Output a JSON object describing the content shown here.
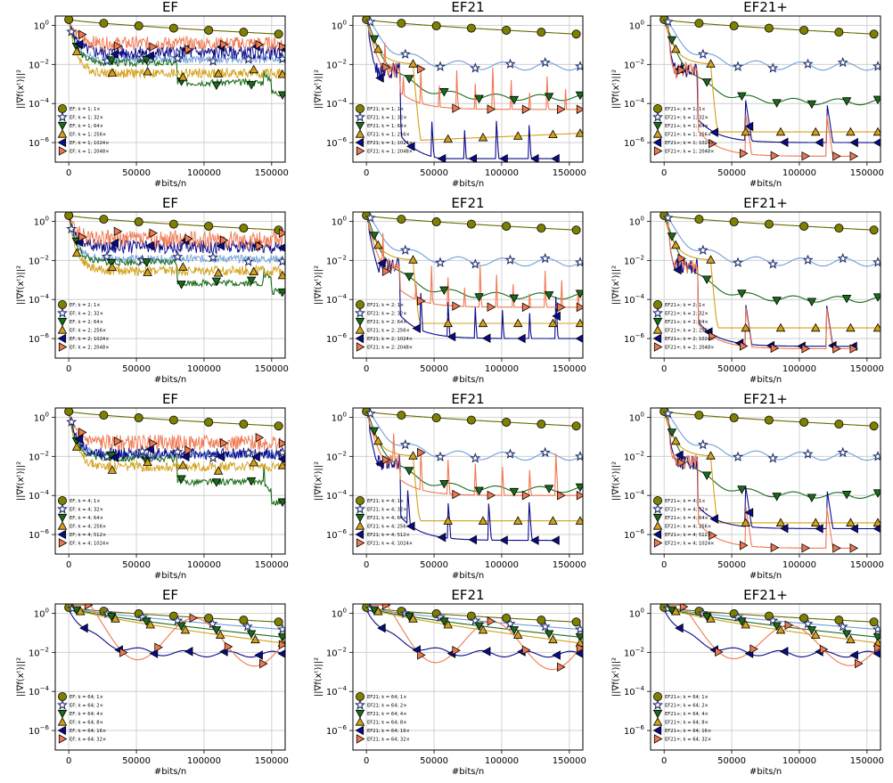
{
  "x_axis": {
    "label": "#bits/n",
    "ticks": [
      0,
      50000,
      100000,
      150000
    ],
    "range": [
      -10000,
      160000
    ]
  },
  "y_axis": {
    "label": "||∇f(xᵗ)||²",
    "scale": "log",
    "range": [
      1e-07,
      3
    ],
    "ticks": [
      {
        "value": 1,
        "base": "10",
        "exp": "0"
      },
      {
        "value": 0.01,
        "base": "10",
        "exp": "−2"
      },
      {
        "value": 0.0001,
        "base": "10",
        "exp": "−4"
      },
      {
        "value": 1e-06,
        "base": "10",
        "exp": "−6"
      }
    ]
  },
  "series_style": [
    {
      "color": "#6b6b00",
      "marker": "circle",
      "marker_fill": "#808000"
    },
    {
      "color": "#6f9fd8",
      "marker": "star",
      "marker_fill": "#1f2d6b"
    },
    {
      "color": "#1a6b1a",
      "marker": "triangle-down",
      "marker_fill": "#1a6b1a"
    },
    {
      "color": "#d4a017",
      "marker": "triangle-up",
      "marker_fill": "#d4a017"
    },
    {
      "color": "#0a0a8c",
      "marker": "triangle-left",
      "marker_fill": "#0a0a8c"
    },
    {
      "color": "#f07850",
      "marker": "triangle-right",
      "marker_fill": "#f07850"
    }
  ],
  "rows": [
    {
      "k": "1",
      "factors": [
        "1×",
        "32×",
        "64×",
        "256×",
        "1024×",
        "2048×"
      ]
    },
    {
      "k": "2",
      "factors": [
        "1×",
        "32×",
        "64×",
        "256×",
        "1024×",
        "2048×"
      ]
    },
    {
      "k": "4",
      "factors": [
        "1×",
        "32×",
        "64×",
        "256×",
        "512×",
        "1024×"
      ]
    },
    {
      "k": "64",
      "factors": [
        "1×",
        "2×",
        "4×",
        "8×",
        "16×",
        "32×"
      ]
    }
  ],
  "methods": [
    "EF",
    "EF21",
    "EF21+"
  ],
  "chart_data": [
    {
      "type": "line",
      "title": "EF",
      "row": 0,
      "col": 0,
      "k": "1",
      "series": [
        {
          "name": "EF; k = 1; 1×",
          "shape": "slow",
          "start": 2,
          "end": 0.35
        },
        {
          "name": "EF; k = 1; 32×",
          "shape": "noisy",
          "start": 2,
          "level": 0.018,
          "amp": 0.2
        },
        {
          "name": "EF; k = 1; 64×",
          "shape": "steps",
          "start": 2,
          "levels": [
            0.012,
            0.0012,
            0.00035
          ]
        },
        {
          "name": "EF; k = 1; 256×",
          "shape": "noisy",
          "start": 2,
          "level": 0.0035,
          "amp": 0.25
        },
        {
          "name": "EF; k = 1; 1024×",
          "shape": "noisy",
          "start": 2,
          "level": 0.04,
          "amp": 0.35
        },
        {
          "name": "EF; k = 1; 2048×",
          "shape": "noisy",
          "start": 2,
          "level": 0.12,
          "amp": 0.35
        }
      ]
    },
    {
      "type": "line",
      "title": "EF21",
      "row": 0,
      "col": 1,
      "k": "1",
      "series": [
        {
          "name": "EF21; k = 1; 1×",
          "shape": "slow",
          "start": 2,
          "end": 0.35
        },
        {
          "name": "EF21; k = 1; 32×",
          "shape": "wavy",
          "start": 2,
          "level": 0.008,
          "amp": 0.4
        },
        {
          "name": "EF21; k = 1; 64×",
          "shape": "wavy",
          "start": 2,
          "level": 0.0002,
          "amp": 0.3
        },
        {
          "name": "EF21; k = 1; 256×",
          "shape": "drop",
          "start": 2,
          "level": 1e-06,
          "drift": 3
        },
        {
          "name": "EF21; k = 1; 1024×",
          "shape": "spiky",
          "start": 2,
          "level": 1e-07,
          "spikes": 5
        },
        {
          "name": "EF21; k = 1; 2048×",
          "shape": "spiky",
          "start": 2,
          "level": 5e-05,
          "spikes": 9
        }
      ]
    },
    {
      "type": "line",
      "title": "EF21+",
      "row": 0,
      "col": 2,
      "k": "1",
      "series": [
        {
          "name": "EF21+; k = 1; 1×",
          "shape": "slow",
          "start": 2,
          "end": 0.35
        },
        {
          "name": "EF21+; k = 1; 32×",
          "shape": "wavy",
          "start": 2,
          "level": 0.008,
          "amp": 0.4
        },
        {
          "name": "EF21+; k = 1; 64×",
          "shape": "wavy",
          "start": 2,
          "level": 0.00012,
          "amp": 0.3
        },
        {
          "name": "EF21+; k = 1; 256×",
          "shape": "drop",
          "start": 2,
          "level": 3.5e-06,
          "drift": 1
        },
        {
          "name": "EF21+; k = 1; 1024×",
          "shape": "spiky",
          "start": 2,
          "level": 1e-06,
          "spikes": 2
        },
        {
          "name": "EF21+; k = 1; 2048×",
          "shape": "spiky",
          "start": 2,
          "level": 2e-07,
          "spikes": 2
        }
      ]
    },
    {
      "type": "line",
      "title": "EF",
      "row": 1,
      "col": 0,
      "k": "2",
      "series": [
        {
          "name": "EF; k = 2; 1×",
          "shape": "slow",
          "start": 2,
          "end": 0.35
        },
        {
          "name": "EF; k = 2; 32×",
          "shape": "noisy",
          "start": 2,
          "level": 0.012,
          "amp": 0.2
        },
        {
          "name": "EF; k = 2; 64×",
          "shape": "steps",
          "start": 2,
          "levels": [
            0.008,
            0.0007,
            0.00025
          ]
        },
        {
          "name": "EF; k = 2; 256×",
          "shape": "noisy",
          "start": 2,
          "level": 0.003,
          "amp": 0.25
        },
        {
          "name": "EF; k = 2; 1024×",
          "shape": "noisy",
          "start": 2,
          "level": 0.05,
          "amp": 0.35
        },
        {
          "name": "EF; k = 2; 2048×",
          "shape": "noisy",
          "start": 2,
          "level": 0.12,
          "amp": 0.45
        }
      ]
    },
    {
      "type": "line",
      "title": "EF21",
      "row": 1,
      "col": 1,
      "k": "2",
      "series": [
        {
          "name": "EF21; k = 2; 1×",
          "shape": "slow",
          "start": 2,
          "end": 0.35
        },
        {
          "name": "EF21; k = 2; 32×",
          "shape": "wavy",
          "start": 2,
          "level": 0.008,
          "amp": 0.4
        },
        {
          "name": "EF21; k = 2; 64×",
          "shape": "wavy",
          "start": 2,
          "level": 0.00015,
          "amp": 0.3
        },
        {
          "name": "EF21; k = 2; 256×",
          "shape": "drop",
          "start": 2,
          "level": 6e-06,
          "drift": 1
        },
        {
          "name": "EF21; k = 2; 1024×",
          "shape": "spiky",
          "start": 2,
          "level": 1e-06,
          "spikes": 6
        },
        {
          "name": "EF21; k = 2; 2048×",
          "shape": "spiky",
          "start": 2,
          "level": 4e-05,
          "spikes": 10
        }
      ]
    },
    {
      "type": "line",
      "title": "EF21+",
      "row": 1,
      "col": 2,
      "k": "2",
      "series": [
        {
          "name": "EF21+; k = 2; 1×",
          "shape": "slow",
          "start": 2,
          "end": 0.35
        },
        {
          "name": "EF21+; k = 2; 32×",
          "shape": "wavy",
          "start": 2,
          "level": 0.008,
          "amp": 0.4
        },
        {
          "name": "EF21+; k = 2; 64×",
          "shape": "wavy",
          "start": 2,
          "level": 0.0001,
          "amp": 0.3
        },
        {
          "name": "EF21+; k = 2; 256×",
          "shape": "drop",
          "start": 2,
          "level": 3.5e-06,
          "drift": 1
        },
        {
          "name": "EF21+; k = 2; 1024×",
          "shape": "spiky",
          "start": 2,
          "level": 4e-07,
          "spikes": 2
        },
        {
          "name": "EF21+; k = 2; 2048×",
          "shape": "spiky",
          "start": 2,
          "level": 3e-07,
          "spikes": 2
        }
      ]
    },
    {
      "type": "line",
      "title": "EF",
      "row": 2,
      "col": 0,
      "k": "4",
      "series": [
        {
          "name": "EF; k = 4; 1×",
          "shape": "slow",
          "start": 2,
          "end": 0.35
        },
        {
          "name": "EF; k = 4; 32×",
          "shape": "noisy",
          "start": 2,
          "level": 0.012,
          "amp": 0.2
        },
        {
          "name": "EF; k = 4; 64×",
          "shape": "steps",
          "start": 2,
          "levels": [
            0.008,
            0.0005,
            4e-05
          ]
        },
        {
          "name": "EF; k = 4; 256×",
          "shape": "noisy",
          "start": 2,
          "level": 0.003,
          "amp": 0.25
        },
        {
          "name": "EF; k = 4; 512×",
          "shape": "noisy",
          "start": 2,
          "level": 0.014,
          "amp": 0.3
        },
        {
          "name": "EF; k = 4; 1024×",
          "shape": "noisy",
          "start": 2,
          "level": 0.05,
          "amp": 0.4
        }
      ]
    },
    {
      "type": "line",
      "title": "EF21",
      "row": 2,
      "col": 1,
      "k": "4",
      "series": [
        {
          "name": "EF21; k = 4; 1×",
          "shape": "slow",
          "start": 2,
          "end": 0.35
        },
        {
          "name": "EF21; k = 4; 32×",
          "shape": "wavy",
          "start": 2,
          "level": 0.01,
          "amp": 0.4
        },
        {
          "name": "EF21; k = 4; 64×",
          "shape": "wavy",
          "start": 2,
          "level": 0.0002,
          "amp": 0.3
        },
        {
          "name": "EF21; k = 4; 256×",
          "shape": "drop",
          "start": 2,
          "level": 5e-06,
          "drift": 1
        },
        {
          "name": "EF21; k = 4; 512×",
          "shape": "spiky",
          "start": 2,
          "level": 5e-07,
          "spikes": 4
        },
        {
          "name": "EF21; k = 4; 1024×",
          "shape": "spiky",
          "start": 2,
          "level": 0.0001,
          "spikes": 6
        }
      ]
    },
    {
      "type": "line",
      "title": "EF21+",
      "row": 2,
      "col": 2,
      "k": "4",
      "series": [
        {
          "name": "EF21+; k = 4; 1×",
          "shape": "slow",
          "start": 2,
          "end": 0.35
        },
        {
          "name": "EF21+; k = 4; 32×",
          "shape": "wavy",
          "start": 2,
          "level": 0.01,
          "amp": 0.4
        },
        {
          "name": "EF21+; k = 4; 64×",
          "shape": "wavy",
          "start": 2,
          "level": 0.0001,
          "amp": 0.3
        },
        {
          "name": "EF21+; k = 4; 256×",
          "shape": "drop",
          "start": 2,
          "level": 4e-06,
          "drift": 1
        },
        {
          "name": "EF21+; k = 4; 512×",
          "shape": "spiky",
          "start": 2,
          "level": 2e-06,
          "spikes": 2
        },
        {
          "name": "EF21+; k = 4; 1024×",
          "shape": "spiky",
          "start": 2,
          "level": 2e-07,
          "spikes": 2
        }
      ]
    },
    {
      "type": "line",
      "title": "EF",
      "row": 3,
      "col": 0,
      "k": "64",
      "series": [
        {
          "name": "EF; k = 64; 1×",
          "shape": "slow",
          "start": 2,
          "end": 0.35
        },
        {
          "name": "EF; k = 64; 2×",
          "shape": "slow",
          "start": 2,
          "end": 0.15
        },
        {
          "name": "EF; k = 64; 4×",
          "shape": "slow",
          "start": 2,
          "end": 0.06
        },
        {
          "name": "EF; k = 64; 8×",
          "shape": "slow",
          "start": 2,
          "end": 0.03
        },
        {
          "name": "EF; k = 64; 16×",
          "shape": "wavy",
          "start": 2,
          "level": 0.008,
          "amp": 0.3
        },
        {
          "name": "EF; k = 64; 32×",
          "shape": "osc",
          "start": 2,
          "level": 0.03,
          "amp": 1.2
        }
      ]
    },
    {
      "type": "line",
      "title": "EF21",
      "row": 3,
      "col": 1,
      "k": "64",
      "series": [
        {
          "name": "EF21; k = 64; 1×",
          "shape": "slow",
          "start": 2,
          "end": 0.35
        },
        {
          "name": "EF21; k = 64; 2×",
          "shape": "slow",
          "start": 2,
          "end": 0.15
        },
        {
          "name": "EF21; k = 64; 4×",
          "shape": "slow",
          "start": 2,
          "end": 0.06
        },
        {
          "name": "EF21; k = 64; 8×",
          "shape": "slow",
          "start": 2,
          "end": 0.03
        },
        {
          "name": "EF21; k = 64; 16×",
          "shape": "wavy",
          "start": 2,
          "level": 0.008,
          "amp": 0.3
        },
        {
          "name": "EF21; k = 64; 32×",
          "shape": "osc",
          "start": 2,
          "level": 0.02,
          "amp": 1.2
        }
      ]
    },
    {
      "type": "line",
      "title": "EF21+",
      "row": 3,
      "col": 2,
      "k": "64",
      "series": [
        {
          "name": "EF21+; k = 64; 1×",
          "shape": "slow",
          "start": 2,
          "end": 0.35
        },
        {
          "name": "EF21+; k = 64; 2×",
          "shape": "slow",
          "start": 2,
          "end": 0.15
        },
        {
          "name": "EF21+; k = 64; 4×",
          "shape": "slow",
          "start": 2,
          "end": 0.06
        },
        {
          "name": "EF21+; k = 64; 8×",
          "shape": "slow",
          "start": 2,
          "end": 0.03
        },
        {
          "name": "EF21+; k = 64; 16×",
          "shape": "wavy",
          "start": 2,
          "level": 0.008,
          "amp": 0.3
        },
        {
          "name": "EF21+; k = 64; 32×",
          "shape": "osc",
          "start": 2,
          "level": 0.02,
          "amp": 1.0
        }
      ]
    }
  ]
}
